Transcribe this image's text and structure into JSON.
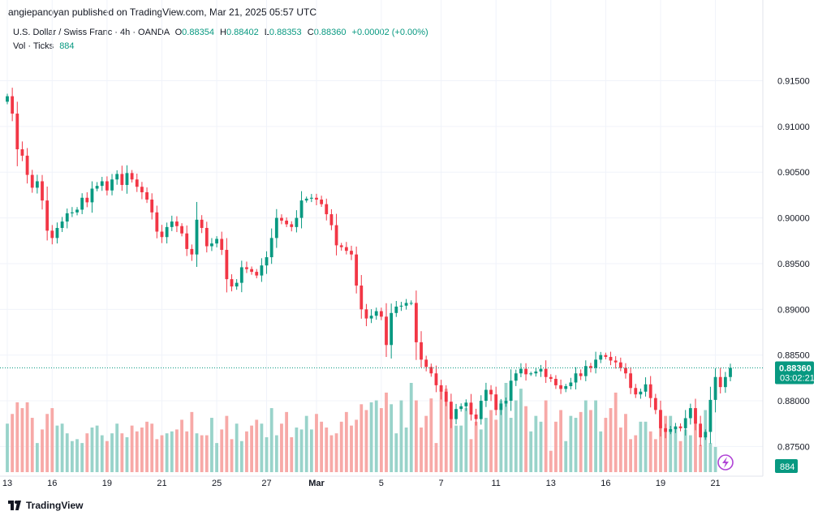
{
  "header": {
    "published": "angiepanoyan published on TradingView.com, Mar 21, 2025 05:57 UTC"
  },
  "legend": {
    "symbol": "U.S. Dollar / Swiss Franc · 4h · OANDA",
    "open_label": "O",
    "open": "0.88354",
    "high_label": "H",
    "high": "0.88402",
    "low_label": "L",
    "low": "0.88353",
    "close_label": "C",
    "close": "0.88360",
    "change": "+0.00002 (+0.00%)",
    "vol_label": "Vol · Ticks",
    "vol_value": "884"
  },
  "price_tag": {
    "price": "0.88360",
    "countdown": "03:02:21"
  },
  "volume_tag": "884",
  "footer": {
    "brand": "TradingView"
  },
  "colors": {
    "up": "#089981",
    "down": "#f23645",
    "up_vol": "#99d3ca",
    "down_vol": "#f7a9a7"
  },
  "chart_data": {
    "type": "candlestick",
    "ylim": [
      0.8722,
      0.9185
    ],
    "y_ticks": [
      "0.91500",
      "0.91000",
      "0.90500",
      "0.90000",
      "0.89500",
      "0.89000",
      "0.88500",
      "0.88000",
      "0.87500"
    ],
    "x_ticks": [
      {
        "label": "13",
        "index": 0
      },
      {
        "label": "16",
        "index": 9
      },
      {
        "label": "19",
        "index": 20
      },
      {
        "label": "21",
        "index": 31
      },
      {
        "label": "25",
        "index": 42
      },
      {
        "label": "27",
        "index": 52
      },
      {
        "label": "Mar",
        "index": 62
      },
      {
        "label": "5",
        "index": 75
      },
      {
        "label": "7",
        "index": 87
      },
      {
        "label": "11",
        "index": 98
      },
      {
        "label": "13",
        "index": 109
      },
      {
        "label": "16",
        "index": 120
      },
      {
        "label": "19",
        "index": 131
      },
      {
        "label": "21",
        "index": 142
      }
    ],
    "last_price": 0.8836,
    "closes": [
      0.9133,
      0.9114,
      0.9075,
      0.9068,
      0.9047,
      0.9033,
      0.904,
      0.9019,
      0.8986,
      0.8978,
      0.8989,
      0.8996,
      0.9005,
      0.9006,
      0.9009,
      0.9022,
      0.9017,
      0.9032,
      0.9035,
      0.904,
      0.903,
      0.9042,
      0.9048,
      0.9036,
      0.9049,
      0.9042,
      0.9034,
      0.9028,
      0.902,
      0.9006,
      0.8985,
      0.8979,
      0.899,
      0.8996,
      0.8991,
      0.8983,
      0.8966,
      0.896,
      0.8998,
      0.8989,
      0.8969,
      0.8972,
      0.8977,
      0.8965,
      0.8933,
      0.8925,
      0.8929,
      0.8946,
      0.8944,
      0.8941,
      0.8937,
      0.8948,
      0.8957,
      0.8978,
      0.9,
      0.8997,
      0.8993,
      0.899,
      0.9,
      0.9019,
      0.9021,
      0.9022,
      0.902,
      0.9015,
      0.9004,
      0.8992,
      0.897,
      0.8968,
      0.8964,
      0.896,
      0.8926,
      0.89,
      0.889,
      0.8893,
      0.8898,
      0.8892,
      0.8861,
      0.8896,
      0.8903,
      0.8904,
      0.8907,
      0.8907,
      0.8864,
      0.8845,
      0.8837,
      0.883,
      0.8817,
      0.881,
      0.8799,
      0.878,
      0.8791,
      0.8794,
      0.8798,
      0.8785,
      0.878,
      0.88,
      0.8812,
      0.8807,
      0.879,
      0.8797,
      0.88,
      0.8822,
      0.883,
      0.8835,
      0.8829,
      0.883,
      0.8832,
      0.8835,
      0.8826,
      0.8824,
      0.8817,
      0.8813,
      0.8816,
      0.882,
      0.883,
      0.8827,
      0.8838,
      0.8836,
      0.8845,
      0.885,
      0.8848,
      0.8844,
      0.8842,
      0.8836,
      0.883,
      0.8814,
      0.8807,
      0.881,
      0.8818,
      0.8803,
      0.879,
      0.877,
      0.8766,
      0.8769,
      0.8772,
      0.877,
      0.8781,
      0.8792,
      0.8775,
      0.876,
      0.8766,
      0.8801,
      0.8826,
      0.8815,
      0.8826,
      0.8836
    ],
    "volumes": [
      25,
      30,
      36,
      33,
      36,
      28,
      15,
      22,
      30,
      33,
      24,
      25,
      20,
      16,
      17,
      15,
      20,
      23,
      24,
      19,
      16,
      20,
      25,
      20,
      18,
      24,
      21,
      23,
      26,
      25,
      17,
      19,
      20,
      21,
      22,
      27,
      21,
      31,
      20,
      19,
      19,
      28,
      15,
      22,
      29,
      17,
      25,
      16,
      21,
      24,
      27,
      25,
      18,
      33,
      19,
      25,
      31,
      18,
      23,
      22,
      29,
      22,
      30,
      26,
      23,
      19,
      20,
      26,
      31,
      24,
      27,
      35,
      32,
      36,
      37,
      33,
      41,
      35,
      20,
      37,
      23,
      46,
      37,
      23,
      29,
      38,
      15,
      43,
      43,
      31,
      24,
      24,
      33,
      17,
      26,
      22,
      28,
      32,
      27,
      37,
      46,
      28,
      37,
      43,
      34,
      21,
      29,
      26,
      37,
      11,
      26,
      32,
      16,
      29,
      28,
      31,
      37,
      32,
      37,
      21,
      28,
      33,
      41,
      23,
      30,
      17,
      19,
      26,
      26,
      21,
      17,
      24,
      29,
      29,
      23,
      16,
      22,
      19,
      32,
      14,
      32,
      15,
      13
    ]
  }
}
